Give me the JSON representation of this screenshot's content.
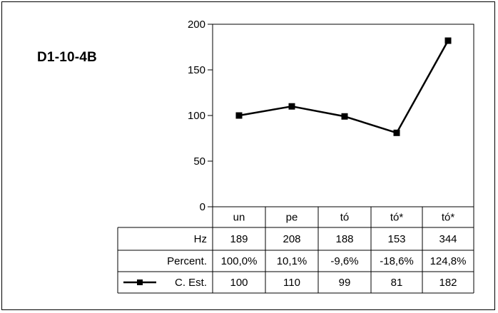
{
  "panel_title": "D1-10-4B",
  "chart_data": {
    "type": "line",
    "categories": [
      "un",
      "pe",
      "tó",
      "tó*",
      "tó*"
    ],
    "ylim": [
      0,
      200
    ],
    "yticks": [
      0,
      50,
      100,
      150,
      200
    ],
    "series": [
      {
        "name": "C. Est.",
        "values": [
          100,
          110,
          99,
          81,
          182
        ],
        "color": "#000000",
        "marker": "square"
      }
    ],
    "title": "D1-10-4B",
    "xlabel": "",
    "ylabel": "",
    "grid": false,
    "table": {
      "rows": [
        {
          "label": "Hz",
          "values": [
            "189",
            "208",
            "188",
            "153",
            "344"
          ]
        },
        {
          "label": "Percent.",
          "values": [
            "100,0%",
            "10,1%",
            "-9,6%",
            "-18,6%",
            "124,8%"
          ]
        },
        {
          "label": "C. Est.",
          "values": [
            "100",
            "110",
            "99",
            "81",
            "182"
          ],
          "legend_marker": true
        }
      ]
    }
  }
}
